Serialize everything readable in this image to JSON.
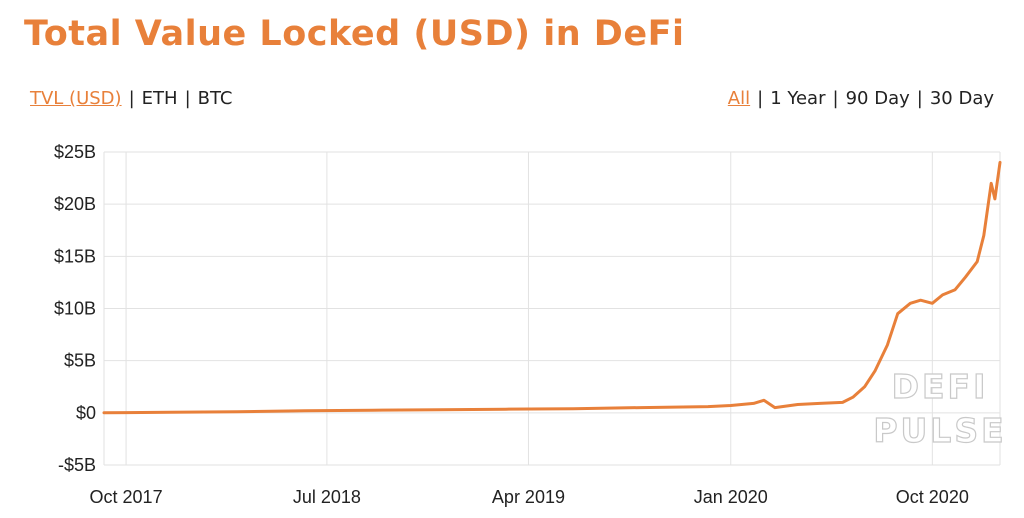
{
  "header": {
    "title": "Total Value Locked (USD) in DeFi"
  },
  "metric_tabs": [
    {
      "label": "TVL (USD)",
      "active": true
    },
    {
      "label": "ETH",
      "active": false
    },
    {
      "label": "BTC",
      "active": false
    }
  ],
  "range_tabs": [
    {
      "label": "All",
      "active": true
    },
    {
      "label": "1 Year",
      "active": false
    },
    {
      "label": "90 Day",
      "active": false
    },
    {
      "label": "30 Day",
      "active": false
    }
  ],
  "separator": "|",
  "watermark": {
    "line1": "DEFI",
    "line2": "PULSE"
  },
  "colors": {
    "accent": "#e8803a",
    "grid": "#e2e2e2",
    "text": "#222222"
  },
  "chart_data": {
    "type": "line",
    "title": "Total Value Locked (USD) in DeFi",
    "xlabel": "",
    "ylabel": "",
    "ylim": [
      -5,
      25
    ],
    "y_unit": "billion USD",
    "y_ticks": [
      25,
      20,
      15,
      10,
      5,
      0,
      -5
    ],
    "y_tick_labels": [
      "$25B",
      "$20B",
      "$15B",
      "$10B",
      "$5B",
      "$0",
      "-$5B"
    ],
    "x_ticks": [
      "2017-10",
      "2018-07",
      "2019-04",
      "2020-01",
      "2020-10"
    ],
    "x_tick_labels": [
      "Oct 2017",
      "Jul 2018",
      "Apr 2019",
      "Jan 2020",
      "Oct 2020"
    ],
    "xlim": [
      "2017-09",
      "2021-01"
    ],
    "grid": true,
    "series": [
      {
        "color": "#e8803a",
        "x": [
          "2017-09",
          "2017-12",
          "2018-03",
          "2018-06",
          "2018-09",
          "2018-12",
          "2019-03",
          "2019-06",
          "2019-09",
          "2019-12",
          "2020-01",
          "2020-02",
          "2020-02-15",
          "2020-03",
          "2020-04",
          "2020-05",
          "2020-06",
          "2020-06-15",
          "2020-07",
          "2020-07-15",
          "2020-08",
          "2020-08-15",
          "2020-09",
          "2020-09-15",
          "2020-10",
          "2020-10-15",
          "2020-11",
          "2020-11-15",
          "2020-12",
          "2020-12-10",
          "2020-12-20",
          "2020-12-25",
          "2021-01"
        ],
        "values": [
          0.0,
          0.05,
          0.1,
          0.2,
          0.25,
          0.3,
          0.35,
          0.4,
          0.5,
          0.6,
          0.7,
          0.9,
          1.2,
          0.5,
          0.8,
          0.9,
          1.0,
          1.5,
          2.5,
          4.0,
          6.5,
          9.5,
          10.5,
          10.8,
          10.5,
          11.3,
          11.8,
          13.0,
          14.5,
          17.0,
          22.0,
          20.5,
          24.0
        ]
      }
    ]
  }
}
